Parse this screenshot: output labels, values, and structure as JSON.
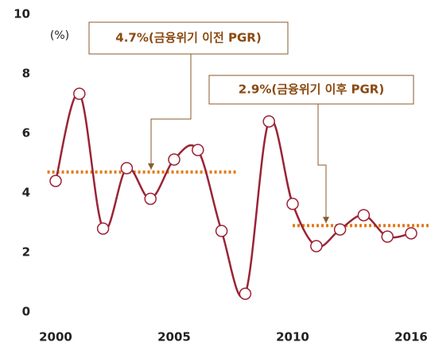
{
  "chart_data": {
    "type": "line",
    "y_label": "(%)",
    "categories": [
      "2000",
      null,
      null,
      null,
      null,
      "2005",
      null,
      null,
      null,
      null,
      "2010",
      null,
      null,
      null,
      null,
      "2016"
    ],
    "series": [
      {
        "color": "#9b2335",
        "values": [
          4.4,
          7.33,
          2.8,
          4.83,
          3.8,
          5.12,
          5.44,
          2.72,
          0.61,
          6.4,
          3.63,
          2.21,
          2.77,
          3.25,
          2.53,
          2.64
        ]
      }
    ],
    "reference_lines": [
      {
        "value": 4.7,
        "label": "4.7%(금융위기 이전 PGR)",
        "color": "#e07b1a"
      },
      {
        "value": 2.9,
        "label": "2.9%(금융위기 이후 PGR)",
        "color": "#e07b1a"
      }
    ],
    "ylim": [
      0,
      10
    ],
    "yticks": [
      0,
      2,
      4,
      6,
      8,
      10
    ],
    "grid": false
  }
}
